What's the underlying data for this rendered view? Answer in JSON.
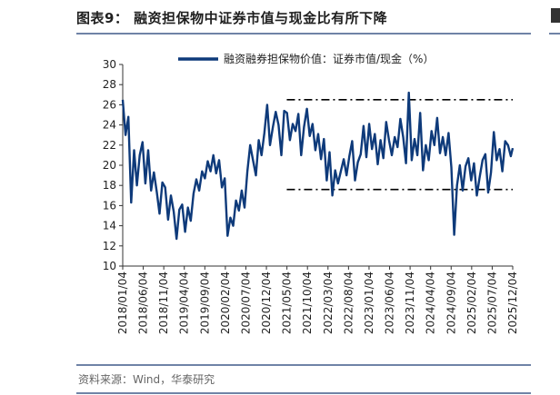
{
  "header": {
    "title": "图表9：  融资担保物中证券市值与现金比有所下降"
  },
  "footer": {
    "source": "资料来源：Wind，华泰研究"
  },
  "colors": {
    "series": "#0e3a7a",
    "rule": "#6f83a6",
    "reference": "#000000"
  },
  "chart_data": {
    "type": "line",
    "title": "",
    "xlabel": "",
    "ylabel": "",
    "ylim": [
      10,
      30
    ],
    "yticks": [
      10,
      12,
      14,
      16,
      18,
      20,
      22,
      24,
      26,
      28,
      30
    ],
    "xlim": [
      "2018-01-04",
      "2025-12-04"
    ],
    "xtick_labels": [
      "2018/01/04",
      "2018/06/04",
      "2018/11/04",
      "2019/04/04",
      "2019/09/04",
      "2020/02/04",
      "2020/07/04",
      "2020/12/04",
      "2021/05/04",
      "2021/10/04",
      "2022/03/04",
      "2022/08/04",
      "2023/01/04",
      "2023/06/04",
      "2023/11/04",
      "2024/04/04",
      "2024/09/04",
      "2025/02/04",
      "2025/07/04",
      "2025/12/04"
    ],
    "grid": false,
    "legend": "top-center",
    "series": [
      {
        "name": "融资融券担保物价值：证券市值/现金（%）",
        "x": [
          "2018-01-04",
          "2018-01-25",
          "2018-02-15",
          "2018-03-08",
          "2018-03-29",
          "2018-04-19",
          "2018-05-10",
          "2018-05-31",
          "2018-06-21",
          "2018-07-12",
          "2018-08-02",
          "2018-08-23",
          "2018-09-13",
          "2018-10-04",
          "2018-10-25",
          "2018-11-15",
          "2018-12-06",
          "2018-12-27",
          "2019-01-17",
          "2019-02-07",
          "2019-02-28",
          "2019-03-21",
          "2019-04-11",
          "2019-05-02",
          "2019-05-23",
          "2019-06-13",
          "2019-07-04",
          "2019-07-25",
          "2019-08-15",
          "2019-09-05",
          "2019-09-26",
          "2019-10-17",
          "2019-11-07",
          "2019-11-28",
          "2019-12-19",
          "2020-01-09",
          "2020-01-30",
          "2020-02-20",
          "2020-03-12",
          "2020-04-02",
          "2020-04-23",
          "2020-05-14",
          "2020-06-04",
          "2020-06-25",
          "2020-07-16",
          "2020-08-06",
          "2020-08-27",
          "2020-09-17",
          "2020-10-08",
          "2020-10-29",
          "2020-11-19",
          "2020-12-10",
          "2020-12-31",
          "2021-01-21",
          "2021-02-11",
          "2021-03-04",
          "2021-03-25",
          "2021-04-15",
          "2021-05-06",
          "2021-05-27",
          "2021-06-17",
          "2021-07-08",
          "2021-07-29",
          "2021-08-19",
          "2021-09-09",
          "2021-09-30",
          "2021-10-21",
          "2021-11-11",
          "2021-12-02",
          "2021-12-23",
          "2022-01-13",
          "2022-02-03",
          "2022-02-24",
          "2022-03-17",
          "2022-04-07",
          "2022-04-28",
          "2022-05-19",
          "2022-06-09",
          "2022-06-30",
          "2022-07-21",
          "2022-08-11",
          "2022-09-01",
          "2022-09-22",
          "2022-10-13",
          "2022-11-03",
          "2022-11-24",
          "2022-12-15",
          "2023-01-05",
          "2023-01-26",
          "2023-02-16",
          "2023-03-09",
          "2023-03-30",
          "2023-04-20",
          "2023-05-11",
          "2023-06-01",
          "2023-06-22",
          "2023-07-13",
          "2023-08-03",
          "2023-08-24",
          "2023-09-14",
          "2023-10-05",
          "2023-10-26",
          "2023-11-16",
          "2023-12-07",
          "2023-12-28",
          "2024-01-18",
          "2024-02-08",
          "2024-02-29",
          "2024-03-21",
          "2024-04-11",
          "2024-05-02",
          "2024-05-23",
          "2024-06-13",
          "2024-07-04",
          "2024-07-25",
          "2024-08-15",
          "2024-09-05",
          "2024-09-26",
          "2024-10-17",
          "2024-11-07",
          "2024-11-28",
          "2024-12-19",
          "2025-01-09",
          "2025-01-30",
          "2025-02-20",
          "2025-03-13",
          "2025-04-03",
          "2025-04-24",
          "2025-05-15",
          "2025-06-05",
          "2025-06-26",
          "2025-07-17",
          "2025-08-07",
          "2025-08-28",
          "2025-09-18",
          "2025-10-09",
          "2025-10-30",
          "2025-11-20",
          "2025-12-04"
        ],
        "values": [
          26.5,
          23.0,
          24.8,
          16.3,
          21.5,
          18.0,
          21.0,
          22.3,
          18.2,
          21.5,
          17.5,
          19.3,
          17.4,
          15.2,
          18.3,
          17.8,
          14.6,
          17.0,
          15.4,
          12.7,
          15.6,
          16.1,
          13.4,
          15.8,
          14.5,
          17.2,
          18.6,
          17.5,
          19.4,
          18.7,
          20.4,
          19.4,
          21.0,
          19.2,
          20.5,
          17.8,
          18.7,
          13.0,
          14.8,
          14.0,
          16.5,
          15.5,
          17.5,
          15.8,
          19.4,
          22.0,
          20.5,
          19.0,
          22.5,
          21.0,
          23.2,
          26.0,
          22.0,
          23.8,
          25.3,
          24.0,
          21.0,
          25.4,
          25.2,
          22.5,
          24.1,
          23.4,
          25.1,
          21.0,
          23.8,
          25.6,
          22.9,
          24.1,
          21.5,
          23.1,
          20.6,
          22.6,
          18.5,
          21.3,
          17.0,
          19.5,
          18.2,
          19.4,
          20.6,
          19.0,
          20.9,
          22.4,
          18.5,
          20.3,
          21.1,
          23.9,
          20.8,
          24.1,
          21.6,
          23.1,
          20.1,
          22.5,
          20.7,
          24.3,
          22.5,
          21.0,
          22.8,
          21.8,
          24.6,
          22.8,
          20.2,
          27.2,
          20.5,
          22.6,
          21.0,
          25.2,
          19.5,
          22.0,
          20.5,
          23.4,
          22.0,
          24.7,
          21.2,
          22.8,
          21.0,
          23.2,
          19.8,
          13.1,
          18.0,
          20.0,
          17.5,
          19.9,
          20.7,
          18.5,
          20.2,
          17.0,
          18.8,
          20.5,
          21.1,
          17.3,
          19.3,
          23.3,
          20.5,
          21.6,
          19.4,
          22.4,
          22.0,
          20.9,
          21.7
        ]
      }
    ],
    "reference_lines": [
      {
        "x_start": "2021-05-04",
        "x_end": "2025-12-04",
        "y": 26.5
      },
      {
        "x_start": "2021-05-04",
        "x_end": "2025-12-04",
        "y": 17.6
      }
    ]
  }
}
